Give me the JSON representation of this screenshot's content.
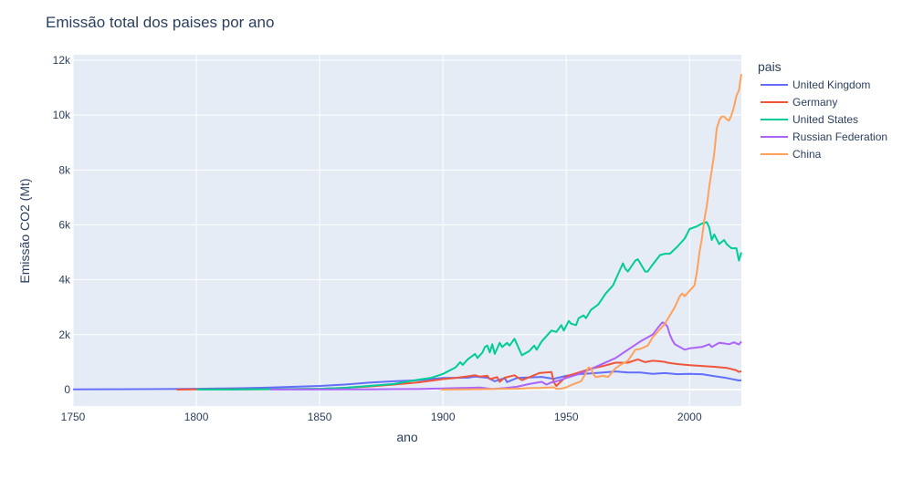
{
  "chart_data": {
    "type": "line",
    "title": "Emissão total dos paises por ano",
    "xlabel": "ano",
    "ylabel": "Emissão CO2 (Mt)",
    "xlim": [
      1750,
      2021
    ],
    "ylim": [
      -600,
      12200
    ],
    "x_ticks": [
      1750,
      1800,
      1850,
      1900,
      1950,
      2000
    ],
    "y_ticks": [
      0,
      2000,
      4000,
      6000,
      8000,
      10000,
      12000
    ],
    "y_tick_labels": [
      "0",
      "2k",
      "4k",
      "6k",
      "8k",
      "10k",
      "12k"
    ],
    "grid": true,
    "legend_title": "pais",
    "legend_position": "right",
    "background_color": "#e5ecf6",
    "series": [
      {
        "name": "United Kingdom",
        "color": "#636efa",
        "points": [
          [
            1750,
            9
          ],
          [
            1770,
            11
          ],
          [
            1790,
            20
          ],
          [
            1800,
            30
          ],
          [
            1810,
            38
          ],
          [
            1820,
            50
          ],
          [
            1830,
            70
          ],
          [
            1840,
            100
          ],
          [
            1850,
            130
          ],
          [
            1860,
            180
          ],
          [
            1870,
            250
          ],
          [
            1880,
            300
          ],
          [
            1890,
            340
          ],
          [
            1900,
            420
          ],
          [
            1910,
            430
          ],
          [
            1913,
            470
          ],
          [
            1918,
            430
          ],
          [
            1921,
            300
          ],
          [
            1925,
            420
          ],
          [
            1926,
            270
          ],
          [
            1930,
            420
          ],
          [
            1940,
            460
          ],
          [
            1945,
            390
          ],
          [
            1950,
            500
          ],
          [
            1955,
            560
          ],
          [
            1960,
            590
          ],
          [
            1965,
            620
          ],
          [
            1970,
            660
          ],
          [
            1975,
            620
          ],
          [
            1980,
            620
          ],
          [
            1985,
            570
          ],
          [
            1990,
            600
          ],
          [
            1995,
            560
          ],
          [
            2000,
            570
          ],
          [
            2005,
            560
          ],
          [
            2010,
            490
          ],
          [
            2015,
            420
          ],
          [
            2020,
            330
          ],
          [
            2021,
            340
          ]
        ]
      },
      {
        "name": "Germany",
        "color": "#ef553b",
        "points": [
          [
            1792,
            0
          ],
          [
            1800,
            5
          ],
          [
            1820,
            8
          ],
          [
            1840,
            20
          ],
          [
            1850,
            30
          ],
          [
            1860,
            60
          ],
          [
            1870,
            110
          ],
          [
            1880,
            180
          ],
          [
            1890,
            260
          ],
          [
            1900,
            380
          ],
          [
            1905,
            420
          ],
          [
            1910,
            480
          ],
          [
            1913,
            520
          ],
          [
            1915,
            470
          ],
          [
            1918,
            500
          ],
          [
            1919,
            380
          ],
          [
            1922,
            450
          ],
          [
            1923,
            280
          ],
          [
            1925,
            430
          ],
          [
            1929,
            520
          ],
          [
            1932,
            340
          ],
          [
            1935,
            450
          ],
          [
            1939,
            600
          ],
          [
            1944,
            640
          ],
          [
            1945,
            260
          ],
          [
            1946,
            130
          ],
          [
            1950,
            480
          ],
          [
            1955,
            620
          ],
          [
            1960,
            760
          ],
          [
            1965,
            860
          ],
          [
            1970,
            980
          ],
          [
            1975,
            980
          ],
          [
            1979,
            1100
          ],
          [
            1982,
            1000
          ],
          [
            1985,
            1050
          ],
          [
            1987,
            1040
          ],
          [
            1990,
            1010
          ],
          [
            1991,
            980
          ],
          [
            1995,
            930
          ],
          [
            2000,
            890
          ],
          [
            2005,
            860
          ],
          [
            2010,
            830
          ],
          [
            2015,
            790
          ],
          [
            2019,
            700
          ],
          [
            2020,
            640
          ],
          [
            2021,
            670
          ]
        ]
      },
      {
        "name": "United States",
        "color": "#00cc96",
        "points": [
          [
            1800,
            2
          ],
          [
            1820,
            5
          ],
          [
            1840,
            20
          ],
          [
            1850,
            30
          ],
          [
            1860,
            60
          ],
          [
            1870,
            130
          ],
          [
            1880,
            200
          ],
          [
            1885,
            280
          ],
          [
            1890,
            360
          ],
          [
            1895,
            420
          ],
          [
            1900,
            570
          ],
          [
            1905,
            800
          ],
          [
            1907,
            1000
          ],
          [
            1908,
            900
          ],
          [
            1910,
            1100
          ],
          [
            1913,
            1300
          ],
          [
            1914,
            1150
          ],
          [
            1916,
            1350
          ],
          [
            1917,
            1550
          ],
          [
            1918,
            1600
          ],
          [
            1919,
            1350
          ],
          [
            1920,
            1650
          ],
          [
            1921,
            1300
          ],
          [
            1923,
            1700
          ],
          [
            1924,
            1550
          ],
          [
            1926,
            1700
          ],
          [
            1927,
            1600
          ],
          [
            1929,
            1850
          ],
          [
            1930,
            1650
          ],
          [
            1932,
            1250
          ],
          [
            1935,
            1400
          ],
          [
            1937,
            1600
          ],
          [
            1938,
            1450
          ],
          [
            1940,
            1750
          ],
          [
            1944,
            2150
          ],
          [
            1946,
            2100
          ],
          [
            1948,
            2350
          ],
          [
            1949,
            2150
          ],
          [
            1951,
            2500
          ],
          [
            1952,
            2400
          ],
          [
            1954,
            2350
          ],
          [
            1955,
            2600
          ],
          [
            1957,
            2700
          ],
          [
            1958,
            2600
          ],
          [
            1960,
            2900
          ],
          [
            1963,
            3100
          ],
          [
            1966,
            3500
          ],
          [
            1969,
            3800
          ],
          [
            1970,
            4000
          ],
          [
            1973,
            4600
          ],
          [
            1974,
            4400
          ],
          [
            1975,
            4300
          ],
          [
            1978,
            4700
          ],
          [
            1979,
            4750
          ],
          [
            1980,
            4600
          ],
          [
            1982,
            4300
          ],
          [
            1983,
            4300
          ],
          [
            1985,
            4550
          ],
          [
            1988,
            4900
          ],
          [
            1990,
            4950
          ],
          [
            1992,
            4950
          ],
          [
            1995,
            5200
          ],
          [
            1998,
            5500
          ],
          [
            2000,
            5850
          ],
          [
            2003,
            5950
          ],
          [
            2005,
            6050
          ],
          [
            2007,
            6100
          ],
          [
            2008,
            5900
          ],
          [
            2009,
            5450
          ],
          [
            2010,
            5650
          ],
          [
            2012,
            5300
          ],
          [
            2014,
            5450
          ],
          [
            2015,
            5300
          ],
          [
            2017,
            5150
          ],
          [
            2019,
            5150
          ],
          [
            2020,
            4700
          ],
          [
            2021,
            5000
          ]
        ]
      },
      {
        "name": "Russian Federation",
        "color": "#ab63fa",
        "points": [
          [
            1830,
            1
          ],
          [
            1850,
            2
          ],
          [
            1870,
            10
          ],
          [
            1880,
            15
          ],
          [
            1890,
            20
          ],
          [
            1900,
            40
          ],
          [
            1910,
            60
          ],
          [
            1915,
            70
          ],
          [
            1920,
            20
          ],
          [
            1925,
            50
          ],
          [
            1930,
            100
          ],
          [
            1935,
            200
          ],
          [
            1940,
            280
          ],
          [
            1942,
            180
          ],
          [
            1944,
            260
          ],
          [
            1946,
            300
          ],
          [
            1950,
            420
          ],
          [
            1955,
            560
          ],
          [
            1960,
            750
          ],
          [
            1965,
            950
          ],
          [
            1970,
            1150
          ],
          [
            1975,
            1450
          ],
          [
            1980,
            1750
          ],
          [
            1985,
            2000
          ],
          [
            1988,
            2350
          ],
          [
            1989,
            2450
          ],
          [
            1990,
            2400
          ],
          [
            1991,
            2300
          ],
          [
            1992,
            2000
          ],
          [
            1993,
            1800
          ],
          [
            1994,
            1650
          ],
          [
            1996,
            1550
          ],
          [
            1998,
            1450
          ],
          [
            2000,
            1500
          ],
          [
            2005,
            1550
          ],
          [
            2008,
            1650
          ],
          [
            2009,
            1550
          ],
          [
            2010,
            1600
          ],
          [
            2012,
            1700
          ],
          [
            2014,
            1680
          ],
          [
            2016,
            1650
          ],
          [
            2018,
            1720
          ],
          [
            2020,
            1640
          ],
          [
            2021,
            1750
          ]
        ]
      },
      {
        "name": "China",
        "color": "#ffa15a",
        "points": [
          [
            1899,
            0
          ],
          [
            1910,
            10
          ],
          [
            1920,
            20
          ],
          [
            1925,
            30
          ],
          [
            1930,
            30
          ],
          [
            1935,
            50
          ],
          [
            1940,
            60
          ],
          [
            1945,
            80
          ],
          [
            1946,
            30
          ],
          [
            1948,
            30
          ],
          [
            1950,
            80
          ],
          [
            1953,
            200
          ],
          [
            1956,
            300
          ],
          [
            1958,
            600
          ],
          [
            1959,
            800
          ],
          [
            1960,
            780
          ],
          [
            1961,
            560
          ],
          [
            1962,
            450
          ],
          [
            1965,
            500
          ],
          [
            1967,
            460
          ],
          [
            1970,
            780
          ],
          [
            1972,
            900
          ],
          [
            1975,
            1050
          ],
          [
            1978,
            1450
          ],
          [
            1980,
            1480
          ],
          [
            1983,
            1600
          ],
          [
            1985,
            1900
          ],
          [
            1988,
            2200
          ],
          [
            1990,
            2400
          ],
          [
            1992,
            2700
          ],
          [
            1994,
            3000
          ],
          [
            1996,
            3400
          ],
          [
            1997,
            3500
          ],
          [
            1998,
            3400
          ],
          [
            1999,
            3500
          ],
          [
            2000,
            3600
          ],
          [
            2002,
            3800
          ],
          [
            2003,
            4300
          ],
          [
            2004,
            5000
          ],
          [
            2005,
            5500
          ],
          [
            2006,
            6200
          ],
          [
            2007,
            6700
          ],
          [
            2008,
            7400
          ],
          [
            2009,
            8000
          ],
          [
            2010,
            8600
          ],
          [
            2011,
            9500
          ],
          [
            2012,
            9800
          ],
          [
            2013,
            9950
          ],
          [
            2014,
            9950
          ],
          [
            2015,
            9850
          ],
          [
            2016,
            9800
          ],
          [
            2017,
            10000
          ],
          [
            2018,
            10300
          ],
          [
            2019,
            10700
          ],
          [
            2020,
            10900
          ],
          [
            2021,
            11500
          ]
        ]
      }
    ]
  }
}
